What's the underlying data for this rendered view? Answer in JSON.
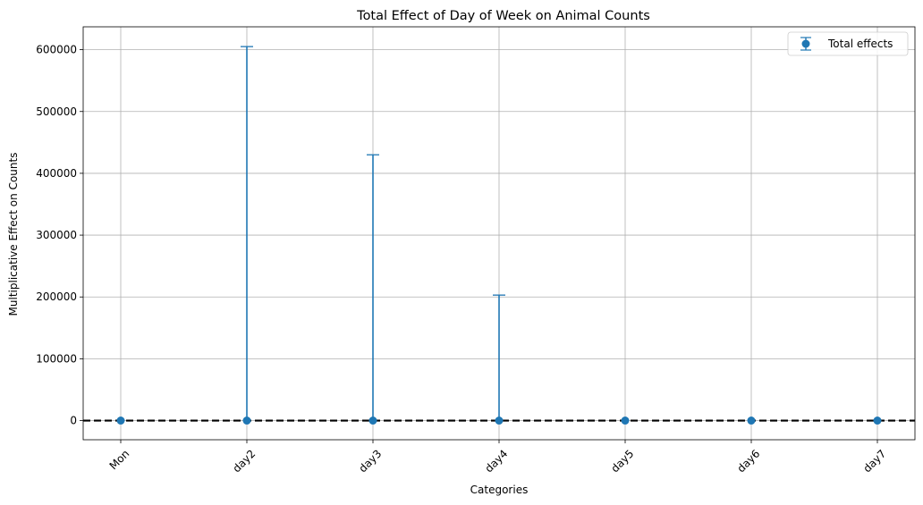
{
  "chart_data": {
    "type": "scatter",
    "title": "Total Effect of Day of Week on Animal Counts",
    "xlabel": "Categories",
    "ylabel": "Multiplicative Effect on Counts",
    "categories": [
      "Mon",
      "day2",
      "day3",
      "day4",
      "day5",
      "day6",
      "day7"
    ],
    "series": [
      {
        "name": "Total effects",
        "values": [
          1,
          1,
          1,
          1,
          1,
          1,
          1
        ],
        "error_upper": [
          0,
          605000,
          430000,
          203000,
          0,
          0,
          0
        ],
        "error_lower": [
          0,
          0,
          0,
          0,
          0,
          0,
          0
        ]
      }
    ],
    "ylim": [
      -31000,
      637000
    ],
    "yticks": [
      0,
      100000,
      200000,
      300000,
      400000,
      500000,
      600000
    ],
    "ytick_labels": [
      "0",
      "100000",
      "200000",
      "300000",
      "400000",
      "500000",
      "600000"
    ],
    "reference_line": {
      "y": 1,
      "style": "dashed",
      "color": "#000000"
    },
    "grid": true,
    "legend_position": "top-right",
    "colors": {
      "series": "#1f77b4",
      "grid": "#b0b0b0",
      "axis": "#000000"
    }
  }
}
